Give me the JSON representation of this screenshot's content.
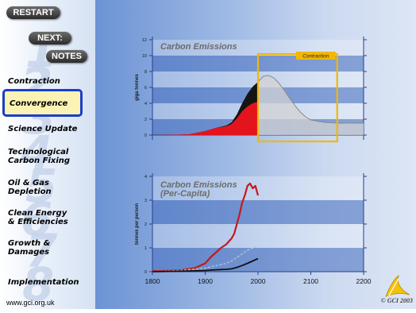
{
  "buttons": {
    "restart": "RESTART",
    "next": "NEXT:",
    "notes": "NOTES"
  },
  "nav": {
    "items": [
      {
        "lines": [
          "Contraction"
        ]
      },
      {
        "lines": [
          "Convergence"
        ]
      },
      {
        "lines": [
          "Science Update"
        ]
      },
      {
        "lines": [
          "Technological",
          "Carbon Fixing"
        ]
      },
      {
        "lines": [
          "Oil & Gas",
          "Depletion"
        ]
      },
      {
        "lines": [
          "Clean Energy",
          "& Efficiencies"
        ]
      },
      {
        "lines": [
          "Growth &",
          "Damages"
        ]
      },
      {
        "lines": [
          "Implementation"
        ]
      }
    ],
    "active_index": 1,
    "background_numbers": [
      "1",
      "2",
      "3",
      "4",
      "5",
      "6",
      "7",
      "8"
    ]
  },
  "footer": {
    "url": "www.gci.org.uk",
    "copyright": "© GCI 2003"
  },
  "colors": {
    "accent": "#f2b705",
    "active_border": "#1a3fc9",
    "active_bg": "#fbf3b3",
    "red": "#d4171f",
    "grey_curve": "#c9c9c9"
  },
  "chart_data": [
    {
      "type": "area",
      "title": "Carbon Emissions",
      "ylabel": "giga tonnes",
      "ylim": [
        0,
        12
      ],
      "yticks": [
        0,
        2,
        4,
        6,
        8,
        10,
        12
      ],
      "xlim": [
        1800,
        2200
      ],
      "annotation": "Contraction",
      "annotation_range": [
        2000,
        2150
      ],
      "series": [
        {
          "x": [
            1800,
            1850,
            1870,
            1900,
            1920,
            1940,
            1950,
            1960,
            1970,
            1980,
            1990,
            2000
          ],
          "values": [
            0,
            0.05,
            0.1,
            0.5,
            0.9,
            1.2,
            1.6,
            2.6,
            4.0,
            5.2,
            6.1,
            6.7
          ]
        },
        {
          "x": [
            1800,
            1850,
            1870,
            1900,
            1920,
            1940,
            1950,
            1960,
            1970,
            1980,
            1990,
            2000
          ],
          "values": [
            0,
            0.05,
            0.1,
            0.5,
            0.9,
            1.1,
            1.4,
            2.1,
            3.0,
            3.6,
            4.0,
            4.2
          ]
        },
        {
          "x": [
            2000,
            2010,
            2020,
            2030,
            2040,
            2050,
            2060,
            2070,
            2080,
            2090,
            2100,
            2125,
            2150,
            2175,
            2200
          ],
          "values": [
            6.7,
            7.4,
            7.5,
            7.2,
            6.5,
            5.6,
            4.6,
            3.7,
            2.9,
            2.3,
            1.9,
            1.6,
            1.5,
            1.5,
            1.5
          ]
        }
      ]
    },
    {
      "type": "line",
      "title": "Carbon Emissions (Per-Capita)",
      "title_lines": [
        "Carbon Emissions",
        "(Per-Capita)"
      ],
      "ylabel": "tonnes per person",
      "ylim": [
        0,
        4
      ],
      "yticks": [
        0,
        1,
        2,
        3,
        4
      ],
      "xlim": [
        1800,
        2200
      ],
      "xticks": [
        1800,
        1900,
        2000,
        2100,
        2200
      ],
      "series": [
        {
          "x": [
            1800,
            1850,
            1880,
            1900,
            1910,
            1920,
            1930,
            1940,
            1950,
            1955,
            1960,
            1965,
            1970,
            1975,
            1980,
            1985,
            1990,
            1995,
            2000
          ],
          "values": [
            0.02,
            0.05,
            0.15,
            0.35,
            0.6,
            0.8,
            1.0,
            1.15,
            1.4,
            1.6,
            2.0,
            2.4,
            2.9,
            3.2,
            3.6,
            3.7,
            3.5,
            3.6,
            3.2
          ]
        },
        {
          "x": [
            1800,
            1850,
            1900,
            1920,
            1940,
            1950,
            1960,
            1970,
            1980,
            1990,
            2000
          ],
          "values": [
            0.01,
            0.05,
            0.15,
            0.25,
            0.35,
            0.45,
            0.6,
            0.75,
            0.9,
            1.0,
            1.1
          ]
        },
        {
          "x": [
            1800,
            1850,
            1900,
            1920,
            1940,
            1950,
            1960,
            1970,
            1980,
            1990,
            2000
          ],
          "values": [
            0,
            0.02,
            0.05,
            0.08,
            0.1,
            0.12,
            0.18,
            0.26,
            0.35,
            0.45,
            0.55
          ]
        }
      ]
    }
  ]
}
